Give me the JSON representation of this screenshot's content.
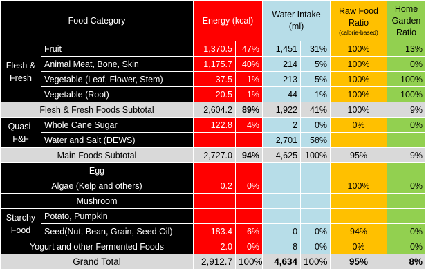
{
  "header": {
    "category": "Food Category",
    "energy": "Energy (kcal)",
    "water": "Water Intake (ml)",
    "raw_line1": "Raw Food Ratio",
    "raw_line2": "(calorie-based)",
    "home": "Home Garden Ratio"
  },
  "groups": {
    "flesh": "Flesh & Fresh",
    "quasi": "Quasi-F&F",
    "starchy": "Starchy Food"
  },
  "rows": {
    "fruit": {
      "name": "Fruit",
      "kcal": "1,370.5",
      "kcal_pct": "47%",
      "ml": "1,451",
      "ml_pct": "31%",
      "raw": "100%",
      "home": "13%"
    },
    "animal": {
      "name": "Animal Meat, Bone, Skin",
      "kcal": "1,175.7",
      "kcal_pct": "40%",
      "ml": "214",
      "ml_pct": "5%",
      "raw": "100%",
      "home": "0%"
    },
    "veg_leaf": {
      "name": "Vegetable (Leaf, Flower, Stem)",
      "kcal": "37.5",
      "kcal_pct": "1%",
      "ml": "213",
      "ml_pct": "5%",
      "raw": "100%",
      "home": "100%"
    },
    "veg_root": {
      "name": "Vegetable (Root)",
      "kcal": "20.5",
      "kcal_pct": "1%",
      "ml": "44",
      "ml_pct": "1%",
      "raw": "100%",
      "home": "100%"
    },
    "ff_subtotal": {
      "name": "Flesh & Fresh Foods Subtotal",
      "kcal": "2,604.2",
      "kcal_pct": "89%",
      "ml": "1,922",
      "ml_pct": "41%",
      "raw": "100%",
      "home": "9%"
    },
    "sugar": {
      "name": "Whole Cane Sugar",
      "kcal": "122.8",
      "kcal_pct": "4%",
      "ml": "2",
      "ml_pct": "0%",
      "raw": "0%",
      "home": "0%"
    },
    "water_salt": {
      "name": "Water and Salt (DEWS)",
      "ml": "2,701",
      "ml_pct": "58%"
    },
    "main_subtotal": {
      "name": "Main Foods Subtotal",
      "kcal": "2,727.0",
      "kcal_pct": "94%",
      "ml": "4,625",
      "ml_pct": "100%",
      "raw": "95%",
      "home": "9%"
    },
    "egg": {
      "name": "Egg"
    },
    "algae": {
      "name": "Algae (Kelp and others)",
      "kcal": "0.2",
      "kcal_pct": "0%",
      "raw": "100%",
      "home": "0%"
    },
    "mushroom": {
      "name": "Mushroom"
    },
    "potato": {
      "name": "Potato, Pumpkin"
    },
    "seed": {
      "name": "Seed(Nut, Bean, Grain, Seed Oil)",
      "kcal": "183.4",
      "kcal_pct": "6%",
      "ml": "0",
      "ml_pct": "0%",
      "raw": "94%",
      "home": "0%"
    },
    "yogurt": {
      "name": "Yogurt and other Fermented Foods",
      "kcal": "2.0",
      "kcal_pct": "0%",
      "ml": "8",
      "ml_pct": "0%",
      "raw": "0%",
      "home": "0%"
    },
    "grand_total": {
      "name": "Grand Total",
      "kcal": "2,912.7",
      "kcal_pct": "100%",
      "ml": "4,634",
      "ml_pct": "100%",
      "raw": "95%",
      "home": "8%"
    }
  },
  "colors": {
    "black": "#000000",
    "energy_red": "#ff0000",
    "water_blue": "#b7dde8",
    "raw_orange": "#ffc000",
    "home_green": "#92d050",
    "subtotal_grey": "#d9d9d9"
  }
}
